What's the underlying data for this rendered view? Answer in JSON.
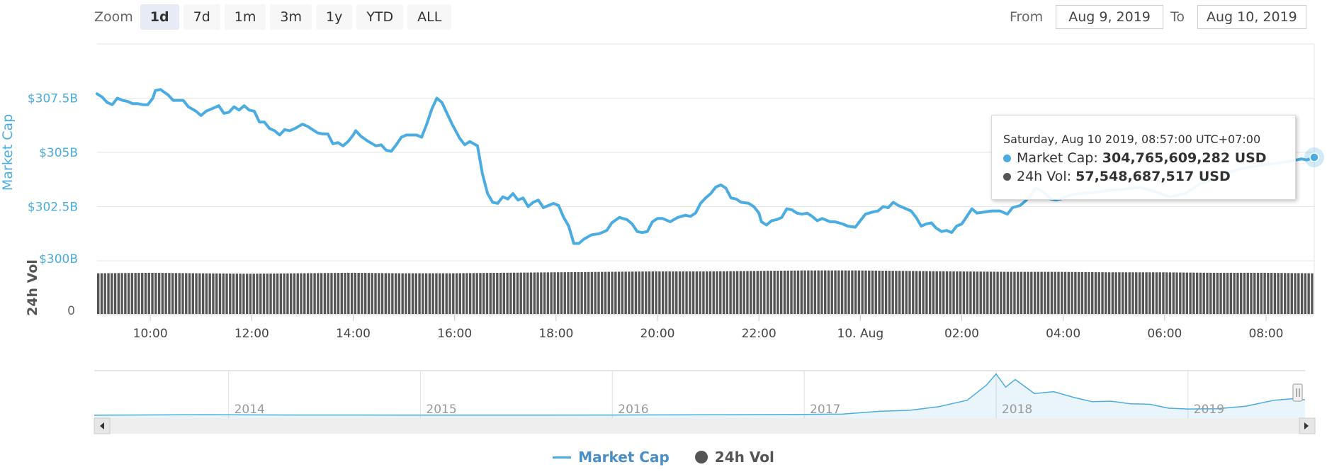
{
  "colors": {
    "market_cap": "#4aace0",
    "volume": "#555555",
    "navigator": "#4aace0"
  },
  "zoom": {
    "label": "Zoom",
    "buttons": [
      {
        "label": "1d",
        "active": true
      },
      {
        "label": "7d",
        "active": false
      },
      {
        "label": "1m",
        "active": false
      },
      {
        "label": "3m",
        "active": false
      },
      {
        "label": "1y",
        "active": false
      },
      {
        "label": "YTD",
        "active": false
      },
      {
        "label": "ALL",
        "active": false
      }
    ]
  },
  "range": {
    "from_label": "From",
    "from_value": "Aug 9, 2019",
    "to_label": "To",
    "to_value": "Aug 10, 2019"
  },
  "tooltip": {
    "date": "Saturday, Aug 10 2019, 08:57:00 UTC+07:00",
    "market_cap_label": "Market Cap:",
    "market_cap_value": "304,765,609,282 USD",
    "vol_label": "24h Vol:",
    "vol_value": "57,548,687,517 USD"
  },
  "legend": {
    "market_cap": "Market Cap",
    "volume": "24h Vol"
  },
  "chart_data": {
    "type": "line",
    "ylabel": "Market Cap",
    "ylabel_volume": "24h Vol",
    "y_ticks": [
      {
        "value": 307.5,
        "label": "$307.5B"
      },
      {
        "value": 305,
        "label": "$305B"
      },
      {
        "value": 302.5,
        "label": "$302.5B"
      },
      {
        "value": 300,
        "label": "$300B"
      }
    ],
    "ylim": [
      300,
      310
    ],
    "volume_tick_label": "0",
    "x_ticks": [
      {
        "hour": 10,
        "label": "10:00"
      },
      {
        "hour": 12,
        "label": "12:00"
      },
      {
        "hour": 14,
        "label": "14:00"
      },
      {
        "hour": 16,
        "label": "16:00"
      },
      {
        "hour": 18,
        "label": "18:00"
      },
      {
        "hour": 20,
        "label": "20:00"
      },
      {
        "hour": 22,
        "label": "22:00"
      },
      {
        "hour": 24,
        "label": "10. Aug"
      },
      {
        "hour": 26,
        "label": "02:00"
      },
      {
        "hour": 28,
        "label": "04:00"
      },
      {
        "hour": 30,
        "label": "06:00"
      },
      {
        "hour": 32,
        "label": "08:00"
      }
    ],
    "xlim_hours": [
      8.95,
      32.95
    ],
    "series": [
      {
        "name": "Market Cap",
        "unit": "B USD",
        "points": [
          [
            8.95,
            307.7
          ],
          [
            9.05,
            307.55
          ],
          [
            9.15,
            307.3
          ],
          [
            9.25,
            307.2
          ],
          [
            9.35,
            307.5
          ],
          [
            9.45,
            307.4
          ],
          [
            9.55,
            307.35
          ],
          [
            9.65,
            307.25
          ],
          [
            9.75,
            307.25
          ],
          [
            9.85,
            307.2
          ],
          [
            9.95,
            307.2
          ],
          [
            10.05,
            307.5
          ],
          [
            10.1,
            307.85
          ],
          [
            10.2,
            307.9
          ],
          [
            10.35,
            307.65
          ],
          [
            10.45,
            307.4
          ],
          [
            10.55,
            307.4
          ],
          [
            10.65,
            307.4
          ],
          [
            10.75,
            307.1
          ],
          [
            10.9,
            306.9
          ],
          [
            11.0,
            306.7
          ],
          [
            11.1,
            306.9
          ],
          [
            11.25,
            307.05
          ],
          [
            11.35,
            307.15
          ],
          [
            11.45,
            306.8
          ],
          [
            11.55,
            306.85
          ],
          [
            11.65,
            307.1
          ],
          [
            11.75,
            306.95
          ],
          [
            11.85,
            307.15
          ],
          [
            11.95,
            306.95
          ],
          [
            12.05,
            306.9
          ],
          [
            12.15,
            306.4
          ],
          [
            12.25,
            306.4
          ],
          [
            12.35,
            306.1
          ],
          [
            12.45,
            306.0
          ],
          [
            12.55,
            305.8
          ],
          [
            12.65,
            306.05
          ],
          [
            12.75,
            306.0
          ],
          [
            12.85,
            306.1
          ],
          [
            13.0,
            306.3
          ],
          [
            13.1,
            306.2
          ],
          [
            13.2,
            306.05
          ],
          [
            13.3,
            305.9
          ],
          [
            13.4,
            305.85
          ],
          [
            13.5,
            305.85
          ],
          [
            13.6,
            305.4
          ],
          [
            13.7,
            305.45
          ],
          [
            13.8,
            305.3
          ],
          [
            13.9,
            305.5
          ],
          [
            14.0,
            305.8
          ],
          [
            14.05,
            306.0
          ],
          [
            14.15,
            305.75
          ],
          [
            14.3,
            305.5
          ],
          [
            14.45,
            305.3
          ],
          [
            14.55,
            305.35
          ],
          [
            14.65,
            305.1
          ],
          [
            14.75,
            305.05
          ],
          [
            14.85,
            305.35
          ],
          [
            14.95,
            305.7
          ],
          [
            15.05,
            305.8
          ],
          [
            15.25,
            305.8
          ],
          [
            15.35,
            305.7
          ],
          [
            15.45,
            306.3
          ],
          [
            15.55,
            307.0
          ],
          [
            15.65,
            307.5
          ],
          [
            15.75,
            307.3
          ],
          [
            15.85,
            306.8
          ],
          [
            15.95,
            306.3
          ],
          [
            16.1,
            305.65
          ],
          [
            16.2,
            305.35
          ],
          [
            16.3,
            305.5
          ],
          [
            16.45,
            305.3
          ],
          [
            16.55,
            304.0
          ],
          [
            16.65,
            303.1
          ],
          [
            16.75,
            302.7
          ],
          [
            16.85,
            302.65
          ],
          [
            16.95,
            302.95
          ],
          [
            17.05,
            302.85
          ],
          [
            17.15,
            303.1
          ],
          [
            17.25,
            302.8
          ],
          [
            17.35,
            302.9
          ],
          [
            17.45,
            302.5
          ],
          [
            17.55,
            302.7
          ],
          [
            17.65,
            302.8
          ],
          [
            17.75,
            302.45
          ],
          [
            17.85,
            302.55
          ],
          [
            17.95,
            302.65
          ],
          [
            18.05,
            302.55
          ],
          [
            18.15,
            302.0
          ],
          [
            18.25,
            301.6
          ],
          [
            18.35,
            300.8
          ],
          [
            18.45,
            300.8
          ],
          [
            18.55,
            301.0
          ],
          [
            18.7,
            301.2
          ],
          [
            18.85,
            301.25
          ],
          [
            19.0,
            301.4
          ],
          [
            19.1,
            301.75
          ],
          [
            19.25,
            302.0
          ],
          [
            19.4,
            301.9
          ],
          [
            19.5,
            301.7
          ],
          [
            19.6,
            301.35
          ],
          [
            19.7,
            301.3
          ],
          [
            19.8,
            301.35
          ],
          [
            19.9,
            301.8
          ],
          [
            20.0,
            301.95
          ],
          [
            20.1,
            301.95
          ],
          [
            20.25,
            301.8
          ],
          [
            20.4,
            302.0
          ],
          [
            20.55,
            302.1
          ],
          [
            20.65,
            302.05
          ],
          [
            20.75,
            302.2
          ],
          [
            20.85,
            302.65
          ],
          [
            20.95,
            302.9
          ],
          [
            21.05,
            303.1
          ],
          [
            21.15,
            303.4
          ],
          [
            21.25,
            303.5
          ],
          [
            21.35,
            303.35
          ],
          [
            21.45,
            302.9
          ],
          [
            21.55,
            302.85
          ],
          [
            21.65,
            302.7
          ],
          [
            21.8,
            302.65
          ],
          [
            21.9,
            302.5
          ],
          [
            22.0,
            302.2
          ],
          [
            22.05,
            301.8
          ],
          [
            22.15,
            301.65
          ],
          [
            22.25,
            301.85
          ],
          [
            22.35,
            301.9
          ],
          [
            22.45,
            302.0
          ],
          [
            22.55,
            302.4
          ],
          [
            22.65,
            302.35
          ],
          [
            22.75,
            302.2
          ],
          [
            22.85,
            302.15
          ],
          [
            22.95,
            302.2
          ],
          [
            23.05,
            302.05
          ],
          [
            23.15,
            301.85
          ],
          [
            23.25,
            301.95
          ],
          [
            23.4,
            301.8
          ],
          [
            23.5,
            301.8
          ],
          [
            23.65,
            301.7
          ],
          [
            23.75,
            301.6
          ],
          [
            23.9,
            301.55
          ],
          [
            24.0,
            301.85
          ],
          [
            24.1,
            302.15
          ],
          [
            24.25,
            302.25
          ],
          [
            24.35,
            302.3
          ],
          [
            24.45,
            302.5
          ],
          [
            24.55,
            302.45
          ],
          [
            24.65,
            302.7
          ],
          [
            24.75,
            302.55
          ],
          [
            24.9,
            302.4
          ],
          [
            25.0,
            302.3
          ],
          [
            25.1,
            302.0
          ],
          [
            25.2,
            301.6
          ],
          [
            25.3,
            301.7
          ],
          [
            25.4,
            301.75
          ],
          [
            25.5,
            301.5
          ],
          [
            25.6,
            301.35
          ],
          [
            25.7,
            301.4
          ],
          [
            25.8,
            301.3
          ],
          [
            25.9,
            301.6
          ],
          [
            26.0,
            301.7
          ],
          [
            26.1,
            302.05
          ],
          [
            26.2,
            302.4
          ],
          [
            26.3,
            302.2
          ],
          [
            26.45,
            302.25
          ],
          [
            26.6,
            302.3
          ],
          [
            26.75,
            302.3
          ],
          [
            26.9,
            302.15
          ],
          [
            27.0,
            302.45
          ],
          [
            27.15,
            302.55
          ],
          [
            27.25,
            302.75
          ],
          [
            27.35,
            303.0
          ],
          [
            27.45,
            303.35
          ],
          [
            27.55,
            303.25
          ],
          [
            27.65,
            303.1
          ],
          [
            27.75,
            302.85
          ],
          [
            27.85,
            302.8
          ],
          [
            27.95,
            302.85
          ],
          [
            28.1,
            303.0
          ],
          [
            28.3,
            303.1
          ],
          [
            28.6,
            303.15
          ],
          [
            28.9,
            303.25
          ],
          [
            29.2,
            303.3
          ],
          [
            29.5,
            303.4
          ],
          [
            29.8,
            303.2
          ],
          [
            30.1,
            302.95
          ],
          [
            30.4,
            303.1
          ],
          [
            30.7,
            303.55
          ],
          [
            31.0,
            303.8
          ],
          [
            31.3,
            304.1
          ],
          [
            31.6,
            304.3
          ],
          [
            31.9,
            304.4
          ],
          [
            32.2,
            304.5
          ],
          [
            32.5,
            304.6
          ],
          [
            32.7,
            304.7
          ],
          [
            32.8,
            304.65
          ],
          [
            32.95,
            304.77
          ]
        ]
      },
      {
        "name": "24h Vol",
        "unit": "B USD",
        "approx_range": [
          56.5,
          58.5
        ],
        "values": [
          57.5,
          57.6,
          57.5,
          57.4,
          57.5,
          57.6,
          57.5,
          57.5,
          57.6,
          57.7,
          57.8,
          57.9,
          57.9,
          58.0,
          58.1,
          58.1,
          58.0,
          57.9,
          57.8,
          57.8,
          57.7,
          57.7,
          57.6,
          57.6,
          57.5
        ]
      }
    ],
    "navigator": {
      "year_labels": [
        {
          "year": 2014,
          "label": "2014"
        },
        {
          "year": 2015,
          "label": "2015"
        },
        {
          "year": 2016,
          "label": "2016"
        },
        {
          "year": 2017,
          "label": "2017"
        },
        {
          "year": 2018,
          "label": "2018"
        },
        {
          "year": 2019,
          "label": "2019"
        }
      ],
      "xlim_years": [
        2013.3,
        2019.61
      ],
      "ylim": [
        0,
        830
      ],
      "unit": "B USD",
      "points": [
        [
          2013.3,
          1.5
        ],
        [
          2013.9,
          12
        ],
        [
          2014.0,
          10
        ],
        [
          2014.4,
          6
        ],
        [
          2014.9,
          4
        ],
        [
          2015.5,
          3.5
        ],
        [
          2016.0,
          6
        ],
        [
          2016.5,
          10
        ],
        [
          2017.0,
          18
        ],
        [
          2017.2,
          25
        ],
        [
          2017.4,
          80
        ],
        [
          2017.55,
          100
        ],
        [
          2017.7,
          170
        ],
        [
          2017.85,
          300
        ],
        [
          2017.95,
          600
        ],
        [
          2018.0,
          820
        ],
        [
          2018.05,
          560
        ],
        [
          2018.1,
          710
        ],
        [
          2018.2,
          430
        ],
        [
          2018.3,
          470
        ],
        [
          2018.4,
          360
        ],
        [
          2018.5,
          270
        ],
        [
          2018.6,
          280
        ],
        [
          2018.7,
          230
        ],
        [
          2018.8,
          220
        ],
        [
          2018.9,
          140
        ],
        [
          2019.0,
          125
        ],
        [
          2019.15,
          130
        ],
        [
          2019.3,
          180
        ],
        [
          2019.45,
          300
        ],
        [
          2019.55,
          330
        ],
        [
          2019.61,
          304
        ]
      ]
    }
  }
}
